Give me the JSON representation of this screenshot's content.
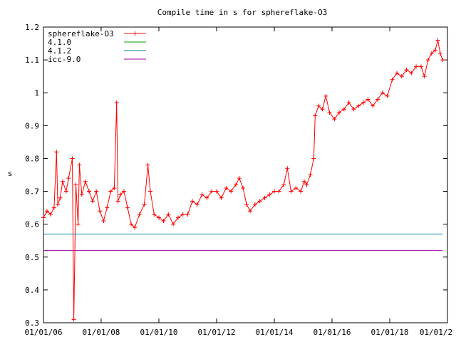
{
  "chart_data": {
    "type": "line",
    "title": "Compile time in s for sphereflake-O3",
    "ylabel": "s",
    "xlabel": "",
    "ylim": [
      0.3,
      1.2
    ],
    "xlim": [
      "2006-01-01",
      "2020-01-01"
    ],
    "x_ticks": [
      "01/01/06",
      "01/01/08",
      "01/01/10",
      "01/01/12",
      "01/01/14",
      "01/01/16",
      "01/01/18",
      "01/01/2"
    ],
    "y_ticks": [
      "0.3",
      "0.4",
      "0.5",
      "0.6",
      "0.7",
      "0.8",
      "0.9",
      "1",
      "1.1",
      "1.2"
    ],
    "legend_position": "top-left",
    "series": [
      {
        "name": "sphereflake-O3",
        "color": "#ff0000",
        "marker": "plus",
        "points": [
          [
            "2006-01-01",
            0.62
          ],
          [
            "2006-02-15",
            0.64
          ],
          [
            "2006-04-01",
            0.63
          ],
          [
            "2006-05-15",
            0.65
          ],
          [
            "2006-06-15",
            0.82
          ],
          [
            "2006-07-01",
            0.66
          ],
          [
            "2006-08-01",
            0.68
          ],
          [
            "2006-09-01",
            0.73
          ],
          [
            "2006-10-15",
            0.7
          ],
          [
            "2006-11-15",
            0.74
          ],
          [
            "2007-01-01",
            0.8
          ],
          [
            "2007-01-20",
            0.31
          ],
          [
            "2007-02-15",
            0.72
          ],
          [
            "2007-03-15",
            0.6
          ],
          [
            "2007-04-01",
            0.78
          ],
          [
            "2007-05-01",
            0.69
          ],
          [
            "2007-06-15",
            0.73
          ],
          [
            "2007-08-01",
            0.7
          ],
          [
            "2007-09-15",
            0.67
          ],
          [
            "2007-11-01",
            0.7
          ],
          [
            "2007-12-15",
            0.64
          ],
          [
            "2008-02-01",
            0.61
          ],
          [
            "2008-03-15",
            0.65
          ],
          [
            "2008-05-01",
            0.7
          ],
          [
            "2008-06-15",
            0.71
          ],
          [
            "2008-07-15",
            0.97
          ],
          [
            "2008-08-01",
            0.67
          ],
          [
            "2008-09-01",
            0.69
          ],
          [
            "2008-10-15",
            0.7
          ],
          [
            "2008-12-01",
            0.65
          ],
          [
            "2009-01-15",
            0.6
          ],
          [
            "2009-03-01",
            0.59
          ],
          [
            "2009-05-01",
            0.63
          ],
          [
            "2009-07-01",
            0.66
          ],
          [
            "2009-08-15",
            0.78
          ],
          [
            "2009-09-15",
            0.7
          ],
          [
            "2009-11-01",
            0.63
          ],
          [
            "2010-01-01",
            0.62
          ],
          [
            "2010-03-01",
            0.61
          ],
          [
            "2010-05-01",
            0.63
          ],
          [
            "2010-07-01",
            0.6
          ],
          [
            "2010-09-01",
            0.62
          ],
          [
            "2010-11-01",
            0.63
          ],
          [
            "2011-01-01",
            0.63
          ],
          [
            "2011-03-01",
            0.67
          ],
          [
            "2011-05-01",
            0.66
          ],
          [
            "2011-07-01",
            0.69
          ],
          [
            "2011-09-01",
            0.68
          ],
          [
            "2011-11-01",
            0.7
          ],
          [
            "2012-01-01",
            0.7
          ],
          [
            "2012-03-01",
            0.68
          ],
          [
            "2012-05-01",
            0.71
          ],
          [
            "2012-07-01",
            0.7
          ],
          [
            "2012-09-01",
            0.72
          ],
          [
            "2012-10-15",
            0.74
          ],
          [
            "2012-12-01",
            0.71
          ],
          [
            "2013-01-15",
            0.66
          ],
          [
            "2013-03-01",
            0.64
          ],
          [
            "2013-05-01",
            0.66
          ],
          [
            "2013-07-01",
            0.67
          ],
          [
            "2013-09-01",
            0.68
          ],
          [
            "2013-11-01",
            0.69
          ],
          [
            "2014-01-01",
            0.7
          ],
          [
            "2014-03-01",
            0.7
          ],
          [
            "2014-05-01",
            0.72
          ],
          [
            "2014-06-15",
            0.77
          ],
          [
            "2014-08-01",
            0.7
          ],
          [
            "2014-10-01",
            0.71
          ],
          [
            "2014-12-01",
            0.7
          ],
          [
            "2015-01-15",
            0.73
          ],
          [
            "2015-02-15",
            0.72
          ],
          [
            "2015-04-01",
            0.75
          ],
          [
            "2015-05-15",
            0.8
          ],
          [
            "2015-06-01",
            0.93
          ],
          [
            "2015-07-15",
            0.96
          ],
          [
            "2015-09-01",
            0.95
          ],
          [
            "2015-10-15",
            0.99
          ],
          [
            "2015-12-01",
            0.94
          ],
          [
            "2016-02-01",
            0.92
          ],
          [
            "2016-04-01",
            0.94
          ],
          [
            "2016-06-01",
            0.95
          ],
          [
            "2016-08-01",
            0.97
          ],
          [
            "2016-10-01",
            0.95
          ],
          [
            "2016-12-01",
            0.96
          ],
          [
            "2017-02-01",
            0.97
          ],
          [
            "2017-04-01",
            0.98
          ],
          [
            "2017-06-01",
            0.96
          ],
          [
            "2017-08-01",
            0.98
          ],
          [
            "2017-10-01",
            1.0
          ],
          [
            "2017-12-01",
            0.99
          ],
          [
            "2018-02-01",
            1.04
          ],
          [
            "2018-04-01",
            1.06
          ],
          [
            "2018-06-01",
            1.05
          ],
          [
            "2018-08-01",
            1.07
          ],
          [
            "2018-10-01",
            1.06
          ],
          [
            "2018-12-01",
            1.08
          ],
          [
            "2019-02-01",
            1.08
          ],
          [
            "2019-03-15",
            1.05
          ],
          [
            "2019-05-01",
            1.1
          ],
          [
            "2019-06-15",
            1.12
          ],
          [
            "2019-08-01",
            1.13
          ],
          [
            "2019-09-01",
            1.16
          ],
          [
            "2019-10-01",
            1.12
          ],
          [
            "2019-11-01",
            1.1
          ]
        ]
      },
      {
        "name": "4.1.0",
        "color": "#00a000",
        "points": []
      },
      {
        "name": "4.1.2",
        "color": "#0080a0",
        "points": [
          [
            "2006-01-01",
            0.57
          ],
          [
            "2019-11-01",
            0.57
          ]
        ]
      },
      {
        "name": "icc-9.0",
        "color": "#a000a0",
        "points": [
          [
            "2006-01-01",
            0.52
          ],
          [
            "2019-11-01",
            0.52
          ]
        ]
      }
    ]
  }
}
